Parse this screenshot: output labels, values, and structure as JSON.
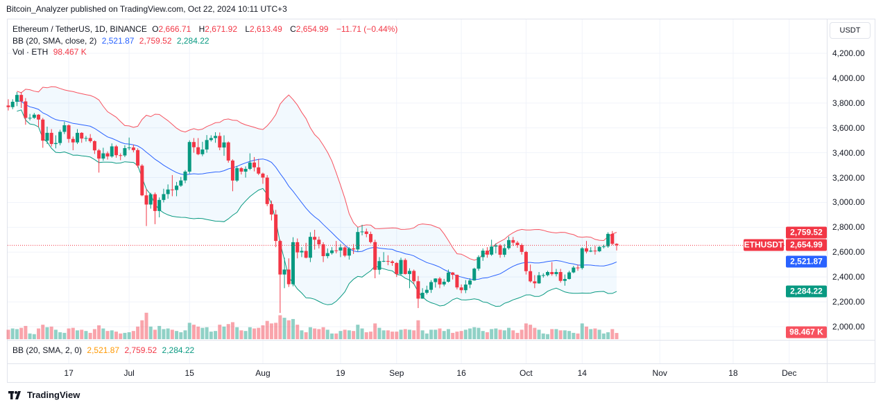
{
  "header": {
    "published": "Bitcoin_Analyzer published on TradingView.com, Oct 22, 2024 10:11 UTC+3"
  },
  "legend": {
    "symbol": "Ethereum / TetherUS, 1D, BINANCE",
    "o_label": "O",
    "o": "2,666.71",
    "h_label": "H",
    "h": "2,671.92",
    "l_label": "L",
    "l": "2,613.49",
    "c_label": "C",
    "c": "2,654.99",
    "change": "−11.71 (−0.44%)",
    "bb_label": "BB (20, SMA, close, 2)",
    "bb_basis": "2,521.87",
    "bb_upper": "2,759.52",
    "bb_lower": "2,284.22",
    "vol_label": "Vol · ETH",
    "vol": "98.467 K"
  },
  "lower_pane": {
    "label": "BB (20, SMA, 2, 0)",
    "basis": "2,521.87",
    "upper": "2,759.52",
    "lower": "2,284.22"
  },
  "price_axis": {
    "currency": "USDT",
    "ticks": [
      "4,200.00",
      "4,000.00",
      "3,800.00",
      "3,600.00",
      "3,400.00",
      "3,200.00",
      "3,000.00",
      "2,800.00",
      "2,600.00",
      "2,400.00",
      "2,200.00",
      "2,000.00"
    ],
    "tags": [
      {
        "name": "bb-upper",
        "text": "2,759.52",
        "color": "#f23645"
      },
      {
        "name": "last-price",
        "text": "2,654.99",
        "color": "#f23645"
      },
      {
        "name": "bb-basis",
        "text": "2,521.87",
        "color": "#2962ff"
      },
      {
        "name": "bb-lower",
        "text": "2,284.22",
        "color": "#089981"
      }
    ],
    "symbol_tag": "ETHUSDT",
    "volume_tag": "98.467 K",
    "volume_tag_color": "#f7525f"
  },
  "time_axis": [
    {
      "label": "17",
      "date": "2024-06-17"
    },
    {
      "label": "Jul",
      "date": "2024-07-01"
    },
    {
      "label": "15",
      "date": "2024-07-15"
    },
    {
      "label": "Aug",
      "date": "2024-08-01"
    },
    {
      "label": "19",
      "date": "2024-08-19"
    },
    {
      "label": "Sep",
      "date": "2024-09-01"
    },
    {
      "label": "16",
      "date": "2024-09-16"
    },
    {
      "label": "Oct",
      "date": "2024-10-01"
    },
    {
      "label": "14",
      "date": "2024-10-14"
    },
    {
      "label": "Nov",
      "date": "2024-11-01"
    },
    {
      "label": "18",
      "date": "2024-11-18"
    },
    {
      "label": "Dec",
      "date": "2024-12-01"
    }
  ],
  "footer": {
    "brand": "TradingView"
  },
  "colors": {
    "up": "#089981",
    "down": "#f23645",
    "basis": "#2962ff",
    "upper": "#f7525f",
    "lower": "#089981",
    "band_fill": "#2196f3"
  },
  "chart_data": {
    "type": "candlestick",
    "title": "Ethereum / TetherUS, 1D, BINANCE",
    "first_candle_date": "2024-06-03",
    "interval": "1D",
    "ylim": [
      2000,
      4200
    ],
    "grid": true,
    "first_open": 3780,
    "close": [
      3767,
      3810,
      3865,
      3813,
      3680,
      3681,
      3706,
      3667,
      3497,
      3560,
      3470,
      3478,
      3568,
      3621,
      3511,
      3483,
      3560,
      3514,
      3518,
      3493,
      3419,
      3353,
      3395,
      3370,
      3451,
      3380,
      3378,
      3437,
      3442,
      3421,
      3296,
      3057,
      2983,
      3066,
      2931,
      3020,
      3067,
      3104,
      3100,
      3135,
      3177,
      3248,
      3486,
      3444,
      3388,
      3426,
      3502,
      3518,
      3535,
      3442,
      3483,
      3337,
      3176,
      3276,
      3248,
      3270,
      3321,
      3282,
      3232,
      3200,
      2987,
      2903,
      2690,
      2420,
      2460,
      2342,
      2680,
      2598,
      2610,
      2555,
      2723,
      2700,
      2663,
      2568,
      2592,
      2614,
      2613,
      2638,
      2572,
      2630,
      2622,
      2762,
      2766,
      2746,
      2681,
      2458,
      2528,
      2529,
      2525,
      2513,
      2424,
      2537,
      2424,
      2449,
      2366,
      2226,
      2273,
      2297,
      2359,
      2388,
      2340,
      2362,
      2436,
      2417,
      2316,
      2294,
      2339,
      2372,
      2467,
      2560,
      2612,
      2580,
      2645,
      2653,
      2579,
      2632,
      2697,
      2676,
      2657,
      2602,
      2447,
      2365,
      2349,
      2414,
      2415,
      2440,
      2423,
      2440,
      2369,
      2384,
      2437,
      2476,
      2472,
      2631,
      2605,
      2612,
      2607,
      2642,
      2647,
      2747,
      2666.71,
      2654.99
    ],
    "high": [
      3830,
      3830,
      3888,
      3887,
      3840,
      3712,
      3720,
      3710,
      3680,
      3610,
      3590,
      3540,
      3585,
      3650,
      3628,
      3530,
      3590,
      3565,
      3535,
      3550,
      3500,
      3430,
      3440,
      3410,
      3475,
      3462,
      3395,
      3460,
      3522,
      3465,
      3435,
      3308,
      3110,
      3078,
      3080,
      3040,
      3110,
      3145,
      3220,
      3165,
      3205,
      3260,
      3500,
      3518,
      3518,
      3488,
      3542,
      3540,
      3565,
      3563,
      3540,
      3491,
      3347,
      3295,
      3285,
      3290,
      3395,
      3365,
      3350,
      3240,
      3220,
      3015,
      2940,
      2700,
      2555,
      2550,
      2720,
      2710,
      2640,
      2675,
      2760,
      2780,
      2725,
      2680,
      2630,
      2640,
      2690,
      2665,
      2650,
      2640,
      2665,
      2800,
      2820,
      2790,
      2765,
      2700,
      2560,
      2600,
      2575,
      2535,
      2520,
      2555,
      2550,
      2470,
      2460,
      2408,
      2310,
      2330,
      2375,
      2390,
      2400,
      2385,
      2460,
      2440,
      2420,
      2340,
      2375,
      2390,
      2475,
      2575,
      2630,
      2640,
      2700,
      2670,
      2665,
      2665,
      2725,
      2722,
      2690,
      2670,
      2610,
      2500,
      2415,
      2440,
      2430,
      2450,
      2520,
      2465,
      2465,
      2420,
      2450,
      2490,
      2500,
      2640,
      2690,
      2640,
      2650,
      2650,
      2660,
      2760,
      2770,
      2671.92
    ],
    "low": [
      3740,
      3750,
      3775,
      3760,
      3625,
      3660,
      3672,
      3605,
      3440,
      3470,
      3450,
      3435,
      3460,
      3550,
      3480,
      3420,
      3470,
      3480,
      3490,
      3480,
      3390,
      3240,
      3335,
      3345,
      3360,
      3360,
      3340,
      3365,
      3420,
      3403,
      3280,
      3050,
      2810,
      2950,
      2825,
      2880,
      3000,
      3030,
      3050,
      3050,
      3125,
      3155,
      3232,
      3400,
      3380,
      3372,
      3400,
      3490,
      3480,
      3420,
      3375,
      3320,
      3090,
      3165,
      3225,
      3200,
      3260,
      3250,
      3220,
      3150,
      2970,
      2855,
      2640,
      2111,
      2310,
      2320,
      2325,
      2550,
      2560,
      2550,
      2520,
      2620,
      2630,
      2520,
      2550,
      2580,
      2590,
      2560,
      2560,
      2540,
      2585,
      2605,
      2735,
      2720,
      2670,
      2390,
      2420,
      2520,
      2495,
      2490,
      2400,
      2410,
      2420,
      2310,
      2340,
      2150,
      2225,
      2260,
      2272,
      2315,
      2310,
      2325,
      2355,
      2380,
      2300,
      2270,
      2270,
      2310,
      2370,
      2450,
      2530,
      2555,
      2570,
      2590,
      2555,
      2560,
      2620,
      2650,
      2635,
      2580,
      2420,
      2355,
      2310,
      2345,
      2395,
      2405,
      2410,
      2405,
      2355,
      2330,
      2380,
      2430,
      2450,
      2460,
      2590,
      2600,
      2580,
      2600,
      2630,
      2635,
      2656,
      2613.49
    ],
    "volume_unit": "K",
    "volume": [
      150,
      170,
      160,
      180,
      210,
      90,
      80,
      170,
      230,
      190,
      200,
      150,
      110,
      100,
      170,
      180,
      140,
      150,
      130,
      100,
      160,
      220,
      170,
      130,
      140,
      120,
      90,
      100,
      110,
      130,
      200,
      300,
      420,
      200,
      150,
      210,
      160,
      170,
      150,
      130,
      110,
      140,
      260,
      230,
      200,
      180,
      190,
      120,
      130,
      230,
      200,
      240,
      270,
      190,
      140,
      130,
      190,
      170,
      180,
      220,
      290,
      250,
      260,
      380,
      340,
      300,
      320,
      230,
      140,
      110,
      190,
      170,
      160,
      190,
      150,
      90,
      90,
      130,
      150,
      140,
      130,
      230,
      170,
      110,
      120,
      250,
      180,
      140,
      140,
      120,
      120,
      150,
      160,
      150,
      140,
      300,
      140,
      90,
      150,
      150,
      170,
      130,
      160,
      100,
      120,
      130,
      150,
      170,
      190,
      180,
      130,
      110,
      160,
      170,
      150,
      140,
      180,
      140,
      100,
      150,
      250,
      230,
      180,
      150,
      90,
      80,
      160,
      160,
      140,
      140,
      130,
      100,
      90,
      250,
      200,
      160,
      170,
      150,
      90,
      110,
      160,
      98.467
    ],
    "indicator": {
      "name": "BB (20, SMA, close, 2)",
      "basis": 2521.87,
      "upper": 2759.52,
      "lower": 2284.22
    },
    "last_price": 2654.99
  }
}
